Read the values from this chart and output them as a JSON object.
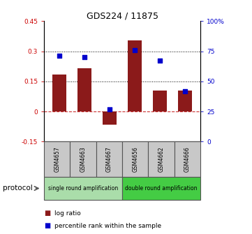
{
  "title": "GDS224 / 11875",
  "samples": [
    "GSM4657",
    "GSM4663",
    "GSM4667",
    "GSM4656",
    "GSM4662",
    "GSM4666"
  ],
  "log_ratio": [
    0.185,
    0.215,
    -0.065,
    0.355,
    0.105,
    0.105
  ],
  "percentile_rank": [
    71,
    70,
    27,
    76,
    67,
    42
  ],
  "bar_color": "#8B1A1A",
  "dot_color": "#0000CC",
  "ylim_left": [
    -0.15,
    0.45
  ],
  "ylim_right": [
    0,
    100
  ],
  "yticks_left": [
    -0.15,
    0,
    0.15,
    0.3,
    0.45
  ],
  "yticks_right": [
    0,
    25,
    50,
    75,
    100
  ],
  "ytick_labels_left": [
    "-0.15",
    "0",
    "0.15",
    "0.3",
    "0.45"
  ],
  "ytick_labels_right": [
    "0",
    "25",
    "50",
    "75",
    "100%"
  ],
  "hlines": [
    0.15,
    0.3
  ],
  "zero_line_color": "#CC3333",
  "hline_color": "#000000",
  "protocol_groups": [
    {
      "label": "single round amplification",
      "color": "#AADDAA"
    },
    {
      "label": "double round amplification",
      "color": "#44CC44"
    }
  ],
  "protocol_label": "protocol",
  "legend_log_ratio": "log ratio",
  "legend_percentile": "percentile rank within the sample",
  "bar_width": 0.55,
  "background_color": "#ffffff"
}
